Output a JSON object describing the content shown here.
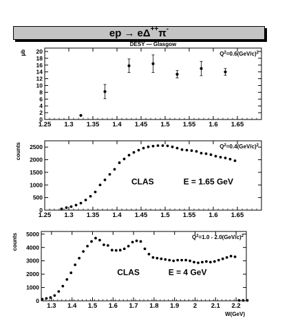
{
  "header": {
    "reaction_lhs": "ep",
    "arrow": "→",
    "reaction_e": "eΔ",
    "reaction_delta_charge": "++",
    "reaction_pi": "π",
    "reaction_pi_charge": "-"
  },
  "chart_data": [
    {
      "type": "scatter",
      "title": "DESY — Glasgow",
      "annotation": "Q²=0.6(GeV/c)²",
      "xlabel": "",
      "ylabel": "µb",
      "xlim": [
        1.25,
        1.7
      ],
      "ylim": [
        0,
        21
      ],
      "xticks": [
        "1.25",
        "1.3",
        "1.35",
        "1.4",
        "1.45",
        "1.5",
        "1.55",
        "1.6",
        "1.65"
      ],
      "yticks": [
        "0",
        "2",
        "4",
        "6",
        "8",
        "10",
        "12",
        "14",
        "16",
        "18",
        "20"
      ],
      "series": [
        {
          "x": [
            1.325,
            1.375,
            1.425,
            1.475,
            1.525,
            1.575,
            1.625
          ],
          "y": [
            1.2,
            8.2,
            15.8,
            16.4,
            13.3,
            15.0,
            14.0
          ],
          "err": [
            0,
            2.1,
            2.0,
            2.6,
            1.1,
            2.1,
            1.0
          ]
        }
      ]
    },
    {
      "type": "scatter",
      "annotation": "Q²=0.4(GeV/c)²",
      "label_left": "CLAS",
      "label_right": "E = 1.65 GeV",
      "xlabel": "",
      "ylabel": "counts",
      "xlim": [
        1.25,
        1.7
      ],
      "ylim": [
        0,
        2750
      ],
      "xticks": [
        "1.25",
        "1.3",
        "1.35",
        "1.4",
        "1.45",
        "1.5",
        "1.55",
        "1.6",
        "1.65"
      ],
      "yticks": [
        "0",
        "500",
        "1000",
        "1500",
        "2000",
        "2500"
      ],
      "series": [
        {
          "x": [
            1.285,
            1.295,
            1.305,
            1.315,
            1.325,
            1.335,
            1.345,
            1.355,
            1.365,
            1.375,
            1.385,
            1.395,
            1.405,
            1.415,
            1.425,
            1.435,
            1.445,
            1.455,
            1.465,
            1.475,
            1.485,
            1.495,
            1.505,
            1.515,
            1.525,
            1.535,
            1.545,
            1.555,
            1.565,
            1.575,
            1.585,
            1.595,
            1.605,
            1.615,
            1.625,
            1.635,
            1.645
          ],
          "y": [
            50,
            100,
            140,
            200,
            280,
            400,
            550,
            720,
            1000,
            1200,
            1420,
            1620,
            1880,
            2030,
            2180,
            2290,
            2380,
            2460,
            2510,
            2540,
            2560,
            2560,
            2550,
            2510,
            2460,
            2400,
            2380,
            2360,
            2330,
            2260,
            2240,
            2200,
            2140,
            2100,
            2070,
            2020,
            1960
          ]
        }
      ]
    },
    {
      "type": "scatter",
      "annotation": "Q²=1.0 - 2.0(GeV/c)²",
      "label_left": "CLAS",
      "label_right": "E = 4 GeV",
      "xlabel": "W(GeV)",
      "ylabel": "counts",
      "xlim": [
        1.25,
        2.25
      ],
      "ylim": [
        0,
        5200
      ],
      "xticks": [
        "1.3",
        "1.4",
        "1.5",
        "1.6",
        "1.7",
        "1.8",
        "1.9",
        "2",
        "2.1",
        "2.2"
      ],
      "yticks": [
        "0",
        "1000",
        "2000",
        "3000",
        "4000",
        "5000"
      ],
      "series": [
        {
          "x": [
            1.255,
            1.275,
            1.295,
            1.315,
            1.335,
            1.355,
            1.375,
            1.395,
            1.415,
            1.435,
            1.455,
            1.475,
            1.495,
            1.515,
            1.535,
            1.555,
            1.575,
            1.595,
            1.615,
            1.635,
            1.655,
            1.675,
            1.695,
            1.715,
            1.735,
            1.755,
            1.775,
            1.795,
            1.815,
            1.835,
            1.855,
            1.875,
            1.895,
            1.915,
            1.935,
            1.955,
            1.975,
            1.995,
            2.015,
            2.035,
            2.055,
            2.075,
            2.095,
            2.115,
            2.135,
            2.155,
            2.175,
            2.195,
            2.215,
            2.235,
            2.255
          ],
          "y": [
            120,
            180,
            250,
            400,
            700,
            1100,
            1600,
            2100,
            2700,
            3200,
            3700,
            4100,
            4450,
            4700,
            4550,
            4200,
            4150,
            3800,
            3780,
            3800,
            3900,
            4100,
            4400,
            4500,
            4450,
            3900,
            3500,
            3250,
            3200,
            3150,
            3100,
            3050,
            3000,
            3050,
            3050,
            3050,
            3000,
            2900,
            2850,
            2900,
            2950,
            2900,
            2950,
            3050,
            3150,
            3250,
            3350,
            3300,
            30,
            30,
            30
          ]
        }
      ]
    }
  ]
}
